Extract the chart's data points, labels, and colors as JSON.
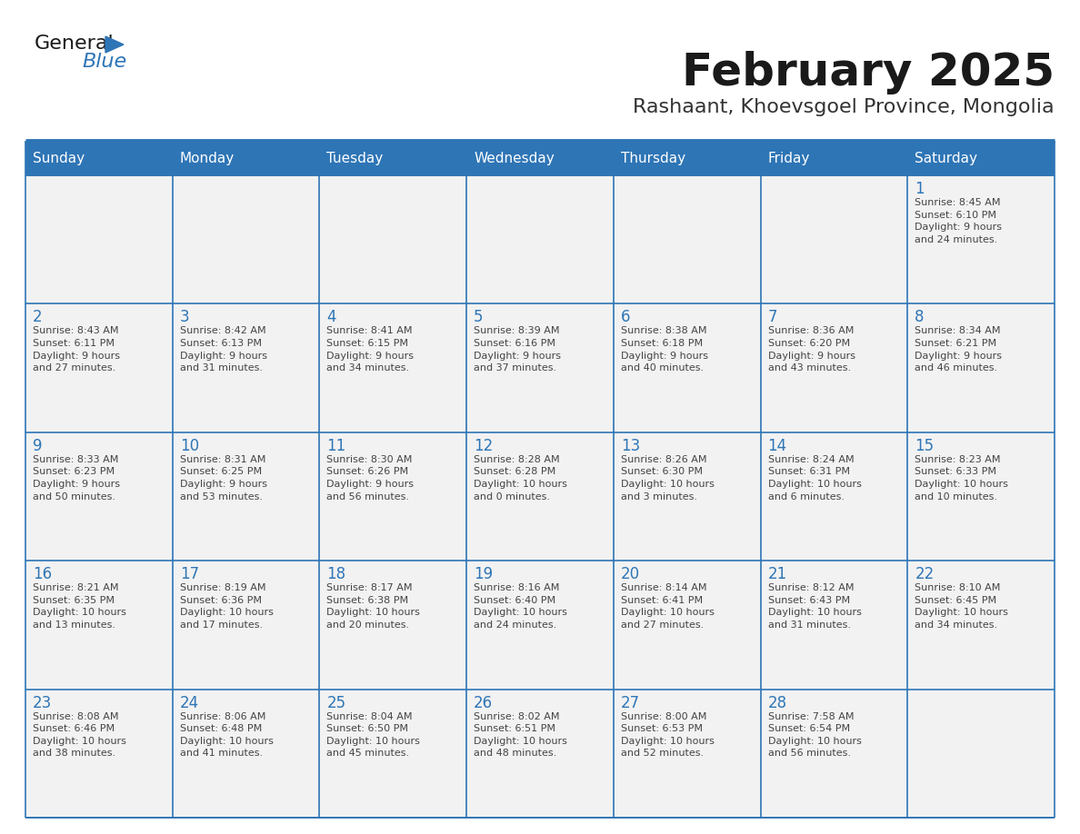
{
  "title": "February 2025",
  "subtitle": "Rashaant, Khoevsgoel Province, Mongolia",
  "header_color": "#2E75B6",
  "header_text_color": "#FFFFFF",
  "cell_bg_color": "#F2F2F2",
  "border_color": "#2E75B6",
  "title_color": "#1A1A1A",
  "subtitle_color": "#333333",
  "day_number_color": "#2E75B6",
  "cell_text_color": "#444444",
  "days_of_week": [
    "Sunday",
    "Monday",
    "Tuesday",
    "Wednesday",
    "Thursday",
    "Friday",
    "Saturday"
  ],
  "weeks": [
    [
      {
        "day": null,
        "info": null
      },
      {
        "day": null,
        "info": null
      },
      {
        "day": null,
        "info": null
      },
      {
        "day": null,
        "info": null
      },
      {
        "day": null,
        "info": null
      },
      {
        "day": null,
        "info": null
      },
      {
        "day": 1,
        "info": "Sunrise: 8:45 AM\nSunset: 6:10 PM\nDaylight: 9 hours\nand 24 minutes."
      }
    ],
    [
      {
        "day": 2,
        "info": "Sunrise: 8:43 AM\nSunset: 6:11 PM\nDaylight: 9 hours\nand 27 minutes."
      },
      {
        "day": 3,
        "info": "Sunrise: 8:42 AM\nSunset: 6:13 PM\nDaylight: 9 hours\nand 31 minutes."
      },
      {
        "day": 4,
        "info": "Sunrise: 8:41 AM\nSunset: 6:15 PM\nDaylight: 9 hours\nand 34 minutes."
      },
      {
        "day": 5,
        "info": "Sunrise: 8:39 AM\nSunset: 6:16 PM\nDaylight: 9 hours\nand 37 minutes."
      },
      {
        "day": 6,
        "info": "Sunrise: 8:38 AM\nSunset: 6:18 PM\nDaylight: 9 hours\nand 40 minutes."
      },
      {
        "day": 7,
        "info": "Sunrise: 8:36 AM\nSunset: 6:20 PM\nDaylight: 9 hours\nand 43 minutes."
      },
      {
        "day": 8,
        "info": "Sunrise: 8:34 AM\nSunset: 6:21 PM\nDaylight: 9 hours\nand 46 minutes."
      }
    ],
    [
      {
        "day": 9,
        "info": "Sunrise: 8:33 AM\nSunset: 6:23 PM\nDaylight: 9 hours\nand 50 minutes."
      },
      {
        "day": 10,
        "info": "Sunrise: 8:31 AM\nSunset: 6:25 PM\nDaylight: 9 hours\nand 53 minutes."
      },
      {
        "day": 11,
        "info": "Sunrise: 8:30 AM\nSunset: 6:26 PM\nDaylight: 9 hours\nand 56 minutes."
      },
      {
        "day": 12,
        "info": "Sunrise: 8:28 AM\nSunset: 6:28 PM\nDaylight: 10 hours\nand 0 minutes."
      },
      {
        "day": 13,
        "info": "Sunrise: 8:26 AM\nSunset: 6:30 PM\nDaylight: 10 hours\nand 3 minutes."
      },
      {
        "day": 14,
        "info": "Sunrise: 8:24 AM\nSunset: 6:31 PM\nDaylight: 10 hours\nand 6 minutes."
      },
      {
        "day": 15,
        "info": "Sunrise: 8:23 AM\nSunset: 6:33 PM\nDaylight: 10 hours\nand 10 minutes."
      }
    ],
    [
      {
        "day": 16,
        "info": "Sunrise: 8:21 AM\nSunset: 6:35 PM\nDaylight: 10 hours\nand 13 minutes."
      },
      {
        "day": 17,
        "info": "Sunrise: 8:19 AM\nSunset: 6:36 PM\nDaylight: 10 hours\nand 17 minutes."
      },
      {
        "day": 18,
        "info": "Sunrise: 8:17 AM\nSunset: 6:38 PM\nDaylight: 10 hours\nand 20 minutes."
      },
      {
        "day": 19,
        "info": "Sunrise: 8:16 AM\nSunset: 6:40 PM\nDaylight: 10 hours\nand 24 minutes."
      },
      {
        "day": 20,
        "info": "Sunrise: 8:14 AM\nSunset: 6:41 PM\nDaylight: 10 hours\nand 27 minutes."
      },
      {
        "day": 21,
        "info": "Sunrise: 8:12 AM\nSunset: 6:43 PM\nDaylight: 10 hours\nand 31 minutes."
      },
      {
        "day": 22,
        "info": "Sunrise: 8:10 AM\nSunset: 6:45 PM\nDaylight: 10 hours\nand 34 minutes."
      }
    ],
    [
      {
        "day": 23,
        "info": "Sunrise: 8:08 AM\nSunset: 6:46 PM\nDaylight: 10 hours\nand 38 minutes."
      },
      {
        "day": 24,
        "info": "Sunrise: 8:06 AM\nSunset: 6:48 PM\nDaylight: 10 hours\nand 41 minutes."
      },
      {
        "day": 25,
        "info": "Sunrise: 8:04 AM\nSunset: 6:50 PM\nDaylight: 10 hours\nand 45 minutes."
      },
      {
        "day": 26,
        "info": "Sunrise: 8:02 AM\nSunset: 6:51 PM\nDaylight: 10 hours\nand 48 minutes."
      },
      {
        "day": 27,
        "info": "Sunrise: 8:00 AM\nSunset: 6:53 PM\nDaylight: 10 hours\nand 52 minutes."
      },
      {
        "day": 28,
        "info": "Sunrise: 7:58 AM\nSunset: 6:54 PM\nDaylight: 10 hours\nand 56 minutes."
      },
      {
        "day": null,
        "info": null
      }
    ]
  ],
  "logo_color_general": "#1A1A1A",
  "logo_color_blue": "#2E75B6",
  "fig_width": 11.88,
  "fig_height": 9.18,
  "dpi": 100
}
